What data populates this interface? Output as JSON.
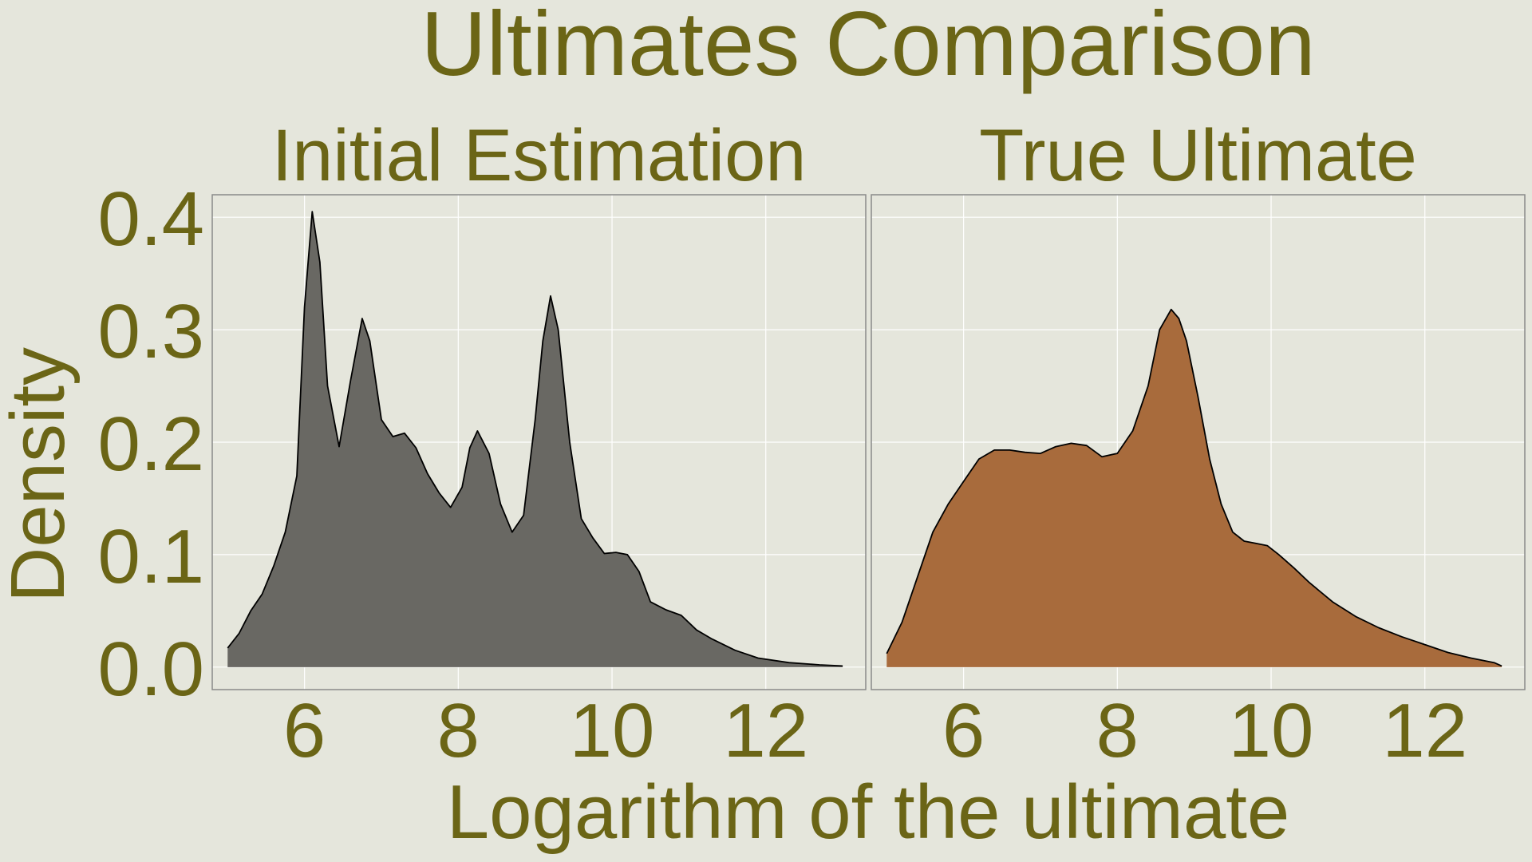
{
  "colors": {
    "background": "#e5e6dc",
    "text": "#6b6516",
    "panel_border": "#8a8a8a",
    "grid": "#ffffff"
  },
  "chart_data": {
    "type": "area",
    "title": "Ultimates Comparison",
    "xlabel": "Logarithm of the ultimate",
    "ylabel": "Density",
    "xlim": [
      4.8,
      13.3
    ],
    "ylim": [
      -0.02,
      0.42
    ],
    "x_ticks": [
      "6",
      "8",
      "10",
      "12"
    ],
    "y_ticks": [
      "0.0",
      "0.1",
      "0.2",
      "0.3",
      "0.4"
    ],
    "grid": true,
    "legend": "none",
    "panels": [
      {
        "name": "Initial Estimation",
        "fill": "#696863",
        "x": [
          5.0,
          5.15,
          5.3,
          5.45,
          5.6,
          5.75,
          5.9,
          6.0,
          6.1,
          6.2,
          6.3,
          6.45,
          6.6,
          6.75,
          6.85,
          7.0,
          7.15,
          7.3,
          7.45,
          7.6,
          7.75,
          7.9,
          8.05,
          8.15,
          8.25,
          8.4,
          8.55,
          8.7,
          8.85,
          9.0,
          9.1,
          9.2,
          9.3,
          9.45,
          9.6,
          9.75,
          9.9,
          10.05,
          10.2,
          10.35,
          10.5,
          10.7,
          10.9,
          11.1,
          11.3,
          11.6,
          11.9,
          12.3,
          12.7,
          13.0
        ],
        "y": [
          0.017,
          0.03,
          0.05,
          0.065,
          0.09,
          0.12,
          0.17,
          0.32,
          0.405,
          0.36,
          0.25,
          0.196,
          0.255,
          0.31,
          0.29,
          0.22,
          0.205,
          0.208,
          0.195,
          0.172,
          0.155,
          0.142,
          0.16,
          0.195,
          0.21,
          0.19,
          0.145,
          0.12,
          0.135,
          0.22,
          0.29,
          0.33,
          0.3,
          0.2,
          0.132,
          0.115,
          0.101,
          0.102,
          0.1,
          0.085,
          0.058,
          0.051,
          0.046,
          0.033,
          0.025,
          0.015,
          0.008,
          0.004,
          0.002,
          0.001
        ]
      },
      {
        "name": "True Ultimate",
        "fill": "#a86b3c",
        "x": [
          5.0,
          5.2,
          5.4,
          5.6,
          5.8,
          6.0,
          6.2,
          6.4,
          6.6,
          6.8,
          7.0,
          7.2,
          7.4,
          7.6,
          7.8,
          8.0,
          8.2,
          8.4,
          8.55,
          8.7,
          8.8,
          8.9,
          9.05,
          9.2,
          9.35,
          9.5,
          9.65,
          9.8,
          9.95,
          10.1,
          10.3,
          10.5,
          10.8,
          11.1,
          11.4,
          11.7,
          12.0,
          12.3,
          12.6,
          12.9,
          13.0
        ],
        "y": [
          0.012,
          0.04,
          0.08,
          0.12,
          0.145,
          0.165,
          0.185,
          0.193,
          0.193,
          0.191,
          0.19,
          0.196,
          0.199,
          0.197,
          0.187,
          0.19,
          0.21,
          0.25,
          0.3,
          0.318,
          0.31,
          0.29,
          0.24,
          0.185,
          0.145,
          0.12,
          0.112,
          0.11,
          0.108,
          0.1,
          0.088,
          0.075,
          0.058,
          0.045,
          0.035,
          0.027,
          0.02,
          0.013,
          0.008,
          0.004,
          0.001
        ]
      }
    ]
  }
}
